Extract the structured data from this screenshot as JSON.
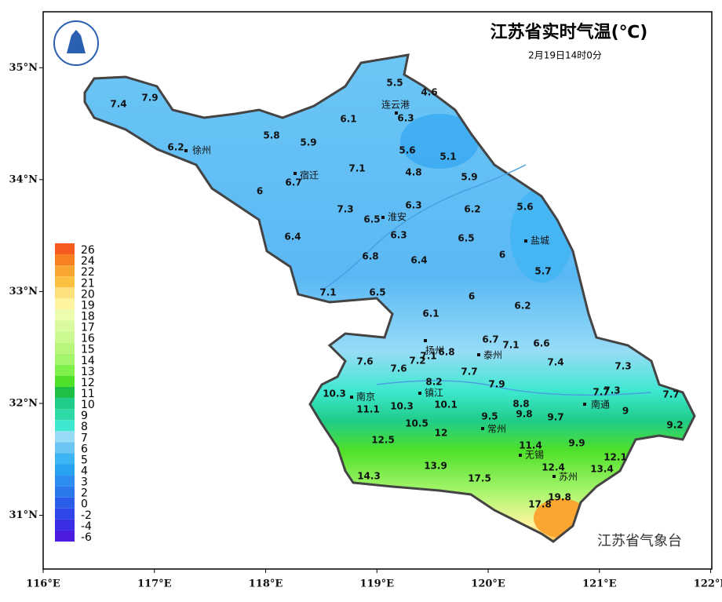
{
  "map": {
    "title": "江苏省实时气温(℃)",
    "subtitle": "2月19日14时0分",
    "footer": "江苏省气象台",
    "xlim": [
      116,
      122.01
    ],
    "ylim": [
      30.52,
      35.5
    ],
    "xticks": [
      {
        "value": 116,
        "label": "116°E"
      },
      {
        "value": 117,
        "label": "117°E"
      },
      {
        "value": 118,
        "label": "118°E"
      },
      {
        "value": 119,
        "label": "119°E"
      },
      {
        "value": 120,
        "label": "120°E"
      },
      {
        "value": 121,
        "label": "121°E"
      },
      {
        "value": 122,
        "label": "122°E"
      }
    ],
    "yticks": [
      {
        "value": 31,
        "label": "31°N"
      },
      {
        "value": 32,
        "label": "32°N"
      },
      {
        "value": 33,
        "label": "33°N"
      },
      {
        "value": 34,
        "label": "34°N"
      },
      {
        "value": 35,
        "label": "35°N"
      }
    ],
    "cities": [
      "连云港",
      "徐州",
      "宿迁",
      "淮安",
      "盐城",
      "扬州",
      "泰州",
      "南京",
      "镇江",
      "常州",
      "南通",
      "无锡",
      "苏州"
    ],
    "temperatures": [
      7.4,
      7.9,
      5.5,
      4.6,
      6.1,
      6.3,
      5.8,
      5.9,
      6.2,
      5.6,
      5.1,
      7.1,
      4.8,
      5.9,
      6.7,
      6.0,
      7.3,
      6.3,
      6.2,
      5.6,
      6.5,
      6.3,
      6.5,
      6.4,
      6.0,
      6.8,
      6.4,
      5.7,
      7.1,
      6.5,
      6.0,
      6.2,
      6.1,
      6.7,
      7.1,
      6.6,
      7.1,
      6.8,
      7.6,
      7.2,
      7.4,
      7.3,
      7.6,
      7.7,
      8.2,
      7.9,
      10.3,
      7.7,
      7.3,
      7.7,
      11.1,
      10.3,
      10.1,
      8.8,
      9.5,
      9.8,
      9.7,
      9.0,
      10.5,
      12.0,
      9.2,
      12.5,
      11.4,
      9.9,
      12.1,
      13.9,
      12.4,
      13.4,
      14.3,
      17.5,
      19.8,
      17.8
    ],
    "legend": {
      "labels": [
        26,
        24,
        22,
        21,
        20,
        19,
        18,
        17,
        16,
        15,
        14,
        13,
        12,
        11,
        10,
        9,
        8,
        7,
        6,
        5,
        4,
        3,
        2,
        0,
        -2,
        -4,
        -6
      ],
      "colors": [
        "#f55a1e",
        "#f98020",
        "#fba630",
        "#fcc040",
        "#fde07c",
        "#fff5a0",
        "#ecfdb0",
        "#dafaa0",
        "#cbf891",
        "#b8f57c",
        "#a3f56a",
        "#7ef24a",
        "#4fe02a",
        "#1dbf46",
        "#1fcc88",
        "#2ed9a8",
        "#3ee8d0",
        "#97dcf7",
        "#6cc6f5",
        "#3db4f3",
        "#2aa2f2",
        "#2b8ef0",
        "#2b78ec",
        "#2a5ee8",
        "#2f47ea",
        "#3a2de6",
        "#4b1bdf"
      ]
    }
  }
}
